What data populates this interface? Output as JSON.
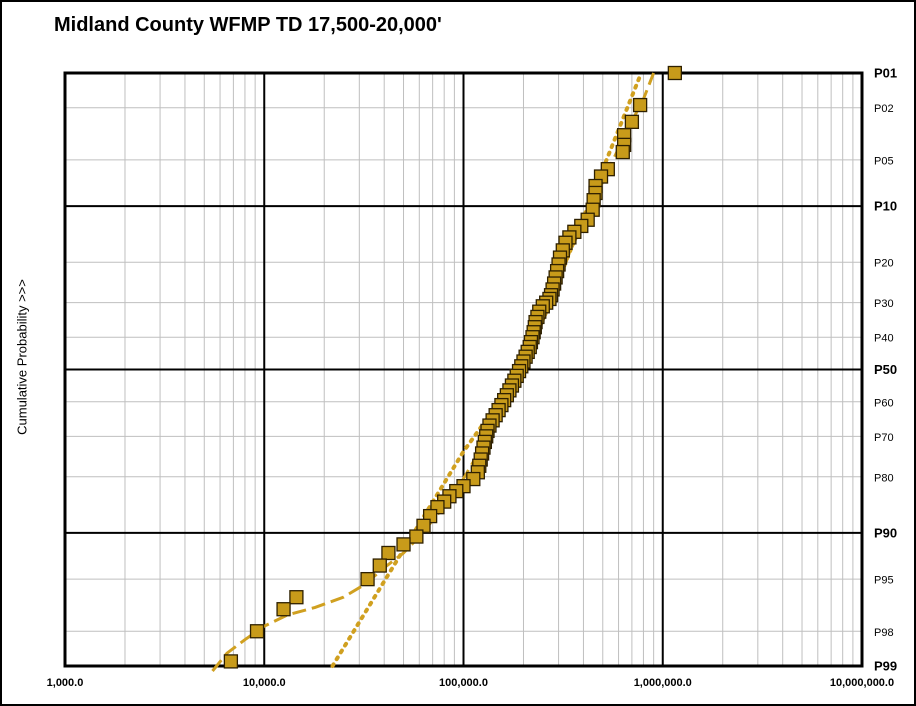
{
  "chart_data": {
    "type": "scatter",
    "title": "Midland County WFMP TD 17,500-20,000'",
    "xlabel": "",
    "ylabel": "Cumulative Probability >>>",
    "x_scale": "log",
    "xlim": [
      1000,
      10000000
    ],
    "y_scale": "normal-probability",
    "ylim": [
      1,
      99
    ],
    "x_ticks": [
      {
        "value": 1000,
        "label": "1,000.0"
      },
      {
        "value": 10000,
        "label": "10,000.0"
      },
      {
        "value": 100000,
        "label": "100,000.0"
      },
      {
        "value": 1000000,
        "label": "1,000,000.0"
      },
      {
        "value": 10000000,
        "label": "10,000,000.0"
      }
    ],
    "y_ticks": [
      {
        "value": 1,
        "label": "P01",
        "major": true
      },
      {
        "value": 2,
        "label": "P02",
        "major": false
      },
      {
        "value": 5,
        "label": "P05",
        "major": false
      },
      {
        "value": 10,
        "label": "P10",
        "major": true
      },
      {
        "value": 20,
        "label": "P20",
        "major": false
      },
      {
        "value": 30,
        "label": "P30",
        "major": false
      },
      {
        "value": 40,
        "label": "P40",
        "major": false
      },
      {
        "value": 50,
        "label": "P50",
        "major": true
      },
      {
        "value": 60,
        "label": "P60",
        "major": false
      },
      {
        "value": 70,
        "label": "P70",
        "major": false
      },
      {
        "value": 80,
        "label": "P80",
        "major": false
      },
      {
        "value": 90,
        "label": "P90",
        "major": true
      },
      {
        "value": 95,
        "label": "P95",
        "major": false
      },
      {
        "value": 98,
        "label": "P98",
        "major": false
      },
      {
        "value": 99,
        "label": "P99",
        "major": true
      }
    ],
    "grid": true,
    "legend": "none",
    "colors": {
      "marker_fill": "#C89B1A",
      "marker_edge": "#2E2000",
      "fit_line": "#D0A020",
      "frame": "#000000",
      "grid_minor": "#BFBFBF"
    },
    "series": [
      {
        "kind": "points",
        "points": [
          {
            "x": 1150000,
            "y": 1.0
          },
          {
            "x": 770000,
            "y": 1.9
          },
          {
            "x": 700000,
            "y": 2.6
          },
          {
            "x": 640000,
            "y": 3.3
          },
          {
            "x": 640000,
            "y": 3.9
          },
          {
            "x": 630000,
            "y": 4.4
          },
          {
            "x": 530000,
            "y": 5.8
          },
          {
            "x": 490000,
            "y": 6.5
          },
          {
            "x": 460000,
            "y": 7.5
          },
          {
            "x": 460000,
            "y": 8.3
          },
          {
            "x": 450000,
            "y": 9.2
          },
          {
            "x": 445000,
            "y": 10.5
          },
          {
            "x": 420000,
            "y": 12.0
          },
          {
            "x": 390000,
            "y": 13.0
          },
          {
            "x": 360000,
            "y": 14.0
          },
          {
            "x": 340000,
            "y": 15.0
          },
          {
            "x": 325000,
            "y": 16.0
          },
          {
            "x": 315000,
            "y": 17.5
          },
          {
            "x": 305000,
            "y": 19.0
          },
          {
            "x": 300000,
            "y": 20.5
          },
          {
            "x": 295000,
            "y": 22.0
          },
          {
            "x": 290000,
            "y": 23.5
          },
          {
            "x": 285000,
            "y": 25.0
          },
          {
            "x": 280000,
            "y": 26.5
          },
          {
            "x": 275000,
            "y": 28.0
          },
          {
            "x": 270000,
            "y": 29.0
          },
          {
            "x": 260000,
            "y": 30.0
          },
          {
            "x": 250000,
            "y": 31.0
          },
          {
            "x": 240000,
            "y": 32.5
          },
          {
            "x": 235000,
            "y": 34.0
          },
          {
            "x": 230000,
            "y": 35.5
          },
          {
            "x": 228000,
            "y": 37.0
          },
          {
            "x": 225000,
            "y": 38.5
          },
          {
            "x": 222000,
            "y": 40.0
          },
          {
            "x": 218000,
            "y": 41.5
          },
          {
            "x": 215000,
            "y": 43.0
          },
          {
            "x": 210000,
            "y": 44.5
          },
          {
            "x": 205000,
            "y": 46.0
          },
          {
            "x": 200000,
            "y": 47.5
          },
          {
            "x": 195000,
            "y": 49.0
          },
          {
            "x": 190000,
            "y": 50.5
          },
          {
            "x": 185000,
            "y": 52.0
          },
          {
            "x": 180000,
            "y": 53.5
          },
          {
            "x": 175000,
            "y": 55.0
          },
          {
            "x": 170000,
            "y": 56.5
          },
          {
            "x": 165000,
            "y": 58.0
          },
          {
            "x": 160000,
            "y": 59.5
          },
          {
            "x": 155000,
            "y": 61.0
          },
          {
            "x": 150000,
            "y": 62.5
          },
          {
            "x": 145000,
            "y": 64.0
          },
          {
            "x": 140000,
            "y": 65.5
          },
          {
            "x": 135000,
            "y": 67.0
          },
          {
            "x": 132000,
            "y": 68.5
          },
          {
            "x": 130000,
            "y": 70.0
          },
          {
            "x": 128000,
            "y": 71.5
          },
          {
            "x": 126000,
            "y": 73.0
          },
          {
            "x": 124000,
            "y": 74.5
          },
          {
            "x": 122000,
            "y": 76.0
          },
          {
            "x": 120000,
            "y": 77.5
          },
          {
            "x": 118000,
            "y": 79.0
          },
          {
            "x": 112000,
            "y": 80.5
          },
          {
            "x": 100000,
            "y": 82.0
          },
          {
            "x": 92000,
            "y": 83.0
          },
          {
            "x": 85000,
            "y": 84.0
          },
          {
            "x": 80000,
            "y": 85.0
          },
          {
            "x": 74000,
            "y": 86.0
          },
          {
            "x": 68000,
            "y": 87.5
          },
          {
            "x": 63000,
            "y": 89.0
          },
          {
            "x": 58000,
            "y": 90.5
          },
          {
            "x": 50000,
            "y": 91.5
          },
          {
            "x": 42000,
            "y": 92.5
          },
          {
            "x": 38000,
            "y": 93.8
          },
          {
            "x": 33000,
            "y": 95.0
          },
          {
            "x": 14500,
            "y": 96.3
          },
          {
            "x": 12500,
            "y": 97.0
          },
          {
            "x": 9200,
            "y": 98.0
          },
          {
            "x": 6800,
            "y": 98.9
          }
        ]
      },
      {
        "kind": "trend-dashed",
        "points": [
          {
            "x": 5500,
            "y": 99.1
          },
          {
            "x": 6500,
            "y": 98.7
          },
          {
            "x": 8000,
            "y": 98.3
          },
          {
            "x": 10000,
            "y": 97.8
          },
          {
            "x": 13000,
            "y": 97.3
          },
          {
            "x": 18000,
            "y": 96.9
          },
          {
            "x": 25000,
            "y": 96.3
          },
          {
            "x": 32000,
            "y": 95.4
          },
          {
            "x": 40000,
            "y": 94.0
          },
          {
            "x": 50000,
            "y": 92.5
          },
          {
            "x": 60000,
            "y": 90.5
          },
          {
            "x": 75000,
            "y": 87.0
          },
          {
            "x": 95000,
            "y": 82.0
          },
          {
            "x": 120000,
            "y": 74.0
          },
          {
            "x": 150000,
            "y": 64.0
          },
          {
            "x": 190000,
            "y": 51.0
          },
          {
            "x": 230000,
            "y": 40.0
          },
          {
            "x": 280000,
            "y": 29.0
          },
          {
            "x": 340000,
            "y": 18.0
          },
          {
            "x": 420000,
            "y": 11.0
          },
          {
            "x": 530000,
            "y": 6.0
          },
          {
            "x": 650000,
            "y": 3.2
          },
          {
            "x": 800000,
            "y": 1.7
          },
          {
            "x": 900000,
            "y": 1.0
          }
        ]
      },
      {
        "kind": "trend-dotted",
        "points": [
          {
            "x": 22000,
            "y": 99.0
          },
          {
            "x": 100000,
            "y": 74.0
          },
          {
            "x": 200000,
            "y": 49.5
          },
          {
            "x": 780000,
            "y": 1.0
          }
        ]
      }
    ]
  }
}
